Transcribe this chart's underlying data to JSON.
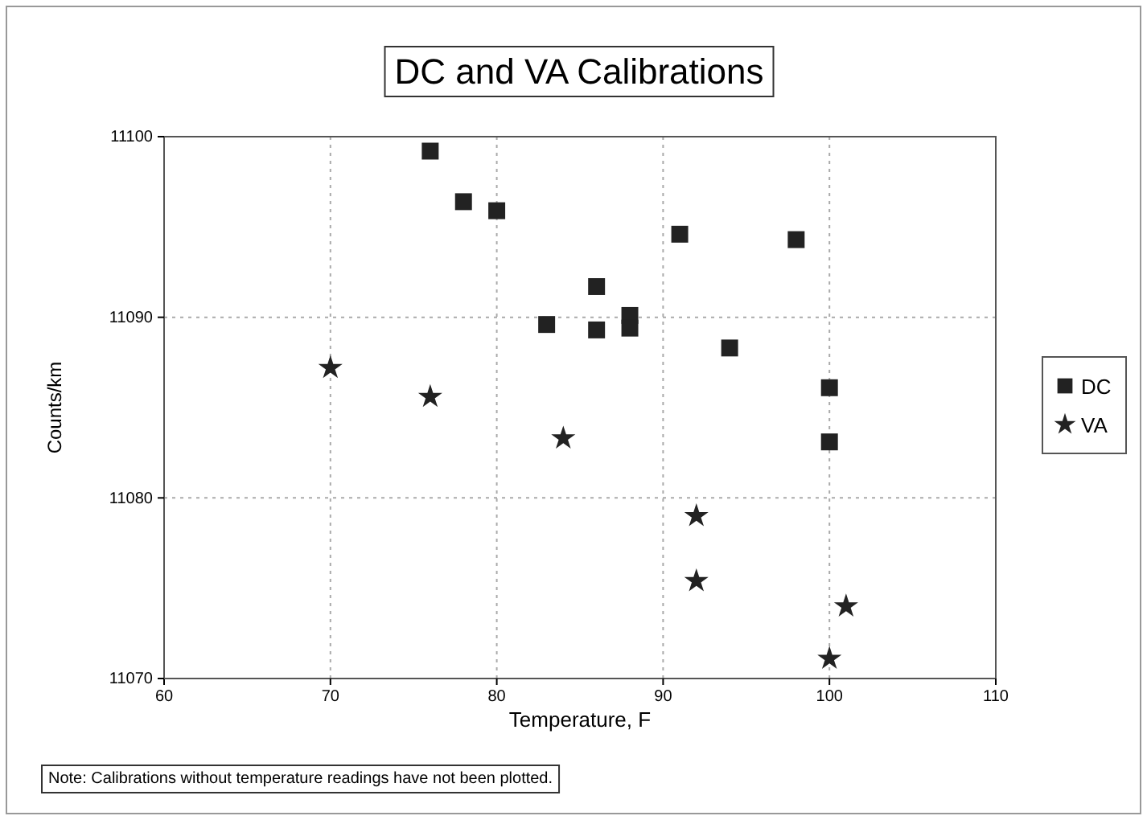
{
  "chart_data": {
    "type": "scatter",
    "title": "DC and VA Calibrations",
    "xlabel": "Temperature, F",
    "ylabel": "Counts/km",
    "xlim": [
      60,
      110
    ],
    "xticks": [
      60,
      70,
      80,
      90,
      100,
      110
    ],
    "ylim": [
      11070,
      11100
    ],
    "yticks": [
      11070,
      11080,
      11090,
      11100
    ],
    "grid": true,
    "legend": "right",
    "series": [
      {
        "name": "DC",
        "color": "#222222",
        "marker": "square",
        "x": [
          76,
          78,
          80,
          83,
          86,
          86,
          88,
          88,
          91,
          98,
          94,
          100,
          100
        ],
        "values": [
          11099.2,
          11096.4,
          11095.9,
          11089.6,
          11091.7,
          11089.3,
          11090.1,
          11089.4,
          11094.6,
          11094.3,
          11088.3,
          11086.1,
          11083.1
        ]
      },
      {
        "name": "VA",
        "color": "#222222",
        "marker": "star",
        "x": [
          70,
          76,
          84,
          92,
          92,
          101,
          100
        ],
        "values": [
          11087.2,
          11085.6,
          11083.3,
          11079.0,
          11075.4,
          11074.0,
          11071.1
        ]
      }
    ],
    "annotations": [
      "Note: Calibrations without temperature readings have not been plotted."
    ]
  }
}
